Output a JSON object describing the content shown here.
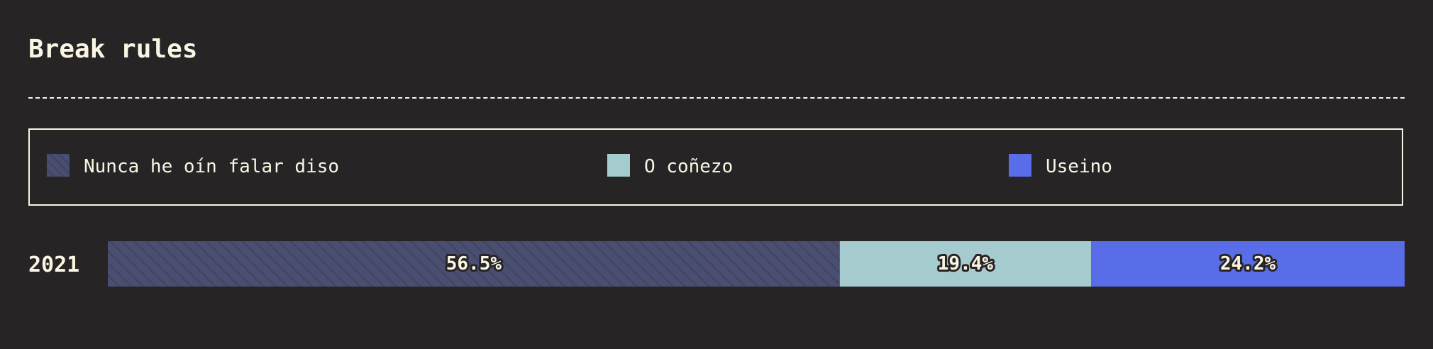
{
  "chart_data": {
    "type": "bar",
    "orientation": "horizontal",
    "stacked": true,
    "title": "Break rules",
    "categories": [
      "2021"
    ],
    "series": [
      {
        "name": "Nunca he oín falar diso",
        "values": [
          56.5
        ],
        "label": "56.5%",
        "color": "#4a4e72",
        "pattern": "diagonal-stripes"
      },
      {
        "name": "O coñezo",
        "values": [
          19.4
        ],
        "label": "19.4%",
        "color": "#a5cbce"
      },
      {
        "name": "Useino",
        "values": [
          24.2
        ],
        "label": "24.2%",
        "color": "#596de8"
      }
    ],
    "legend_position": "top",
    "grid": false
  }
}
